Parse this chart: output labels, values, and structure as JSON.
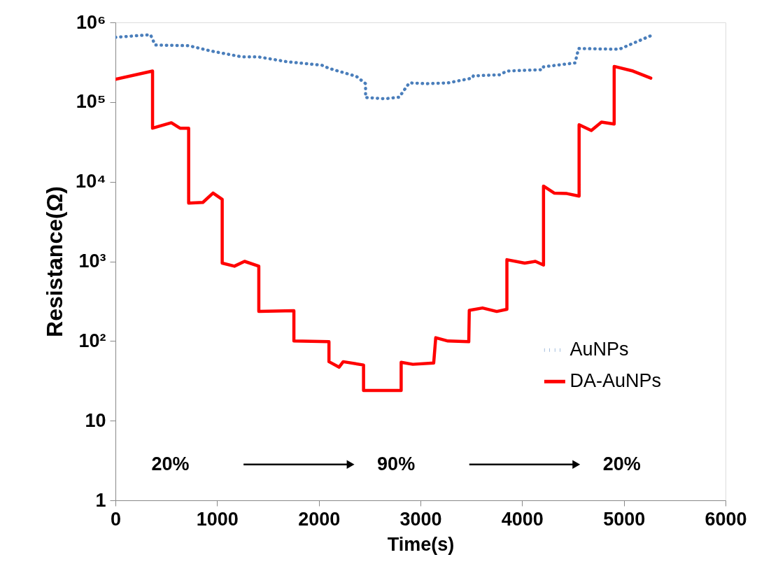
{
  "chart_data": {
    "type": "line",
    "xlabel": "Time(s)",
    "ylabel": "Resistance(Ω)",
    "log": true,
    "xlim": [
      0,
      6000
    ],
    "xticks": [
      0,
      1000,
      2000,
      3000,
      4000,
      5000,
      6000
    ],
    "ylim": [
      1,
      1000000
    ],
    "yticks": [
      1,
      10,
      {
        "value": 100,
        "label": "10²"
      },
      {
        "value": 1000,
        "label": "10³"
      },
      {
        "value": 10000,
        "label": "10⁴"
      },
      {
        "value": 100000,
        "label": "10⁵"
      },
      {
        "value": 1000000,
        "label": "10⁶"
      }
    ],
    "grid": false,
    "legend": "right",
    "annotations": [
      "20%",
      "90%",
      "20%"
    ],
    "series": [
      {
        "name": "AuNPs",
        "color": "#4a7ebb",
        "line_style": "dotted",
        "x": [
          0,
          345,
          390,
          720,
          930,
          1240,
          1400,
          1690,
          2030,
          2100,
          2370,
          2460,
          2460,
          2650,
          2790,
          2890,
          3060,
          3270,
          3510,
          3520,
          3780,
          3850,
          4200,
          4210,
          4520,
          4555,
          4955,
          5265
        ],
        "values": [
          650000,
          700000,
          520000,
          510000,
          440000,
          370000,
          370000,
          320000,
          290000,
          265000,
          210000,
          170000,
          114000,
          110000,
          115000,
          174000,
          170000,
          174000,
          200000,
          213000,
          220000,
          245000,
          255000,
          277000,
          310000,
          470000,
          460000,
          680000
        ]
      },
      {
        "name": "DA-AuNPs",
        "color": "#ff0000",
        "line_style": "solid",
        "x": [
          0,
          365,
          365,
          550,
          635,
          720,
          720,
          860,
          960,
          1050,
          1050,
          1170,
          1270,
          1410,
          1410,
          1755,
          1755,
          2100,
          2100,
          2200,
          2240,
          2440,
          2440,
          2810,
          2810,
          2925,
          3130,
          3150,
          3270,
          3475,
          3480,
          3610,
          3750,
          3850,
          3850,
          4025,
          4130,
          4210,
          4210,
          4315,
          4440,
          4560,
          4560,
          4680,
          4780,
          4905,
          4905,
          5090,
          5265
        ],
        "values": [
          193000,
          245000,
          47000,
          55000,
          47000,
          47000,
          5400,
          5500,
          7200,
          6000,
          950,
          870,
          1000,
          870,
          235,
          240,
          100,
          98,
          55,
          47,
          55,
          50,
          24,
          24,
          54,
          51,
          53,
          110,
          100,
          98,
          243,
          260,
          235,
          250,
          1050,
          950,
          1000,
          900,
          8800,
          7200,
          7100,
          6600,
          52000,
          44000,
          56000,
          53000,
          280000,
          245000,
          200000
        ]
      }
    ]
  }
}
